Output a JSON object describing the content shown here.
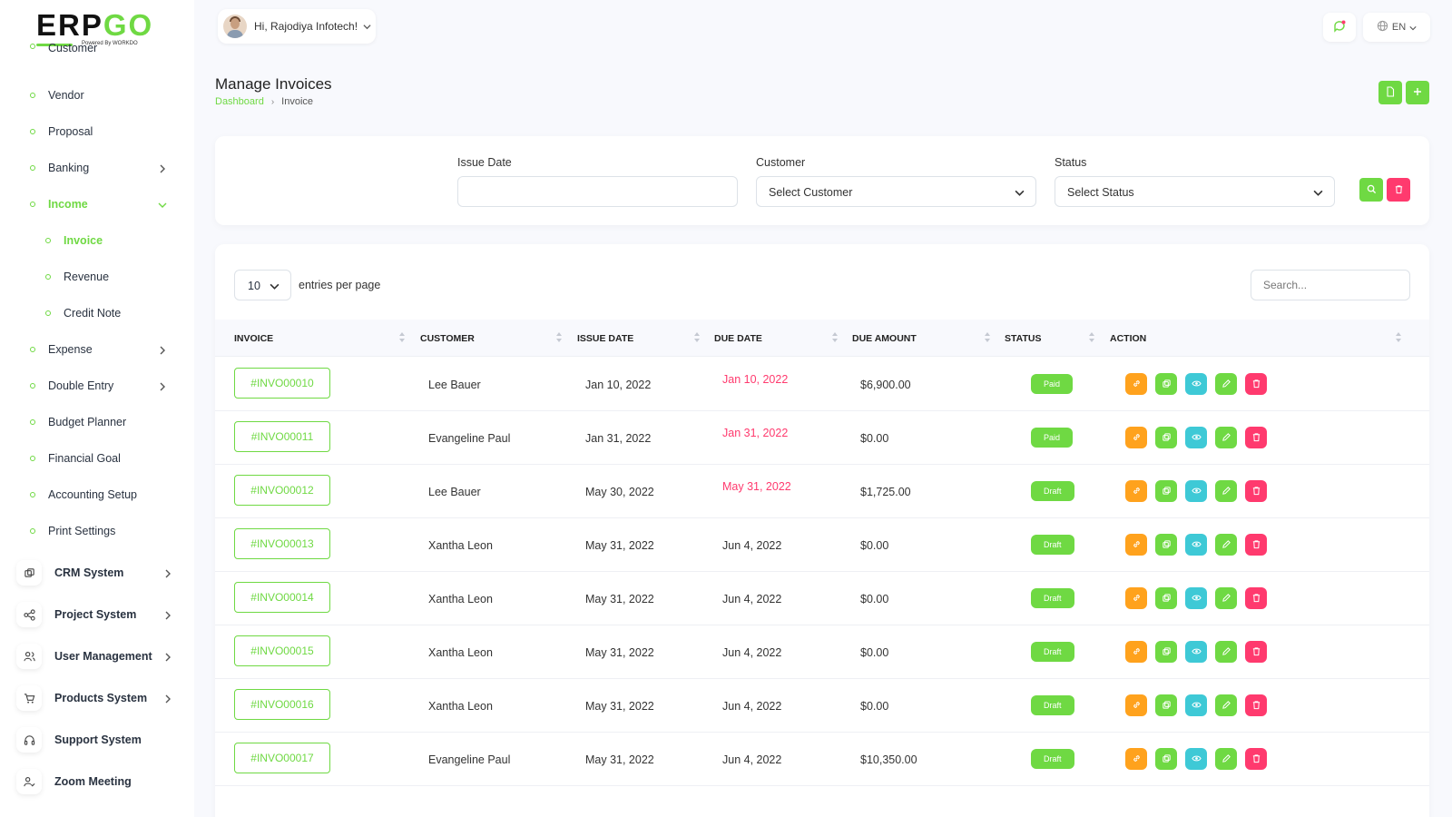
{
  "brand": {
    "logo_main": "ERP",
    "logo_accent": "GO",
    "logo_sub": "Powered By WORKDO"
  },
  "sidebar": {
    "items": [
      {
        "label": "Customer"
      },
      {
        "label": "Vendor"
      },
      {
        "label": "Proposal"
      },
      {
        "label": "Banking"
      },
      {
        "label": "Income"
      },
      {
        "label": "Invoice"
      },
      {
        "label": "Revenue"
      },
      {
        "label": "Credit Note"
      },
      {
        "label": "Expense"
      },
      {
        "label": "Double Entry"
      },
      {
        "label": "Budget Planner"
      },
      {
        "label": "Financial Goal"
      },
      {
        "label": "Accounting Setup"
      },
      {
        "label": "Print Settings"
      }
    ],
    "modules": [
      {
        "label": "CRM System",
        "icon": "layers-icon"
      },
      {
        "label": "Project System",
        "icon": "share-icon"
      },
      {
        "label": "User Management",
        "icon": "users-icon"
      },
      {
        "label": "Products System",
        "icon": "cart-icon"
      },
      {
        "label": "Support System",
        "icon": "headset-icon"
      },
      {
        "label": "Zoom Meeting",
        "icon": "user-check-icon"
      }
    ]
  },
  "header": {
    "greeting": "Hi, Rajodiya Infotech!",
    "language": "EN"
  },
  "page": {
    "title": "Manage Invoices",
    "breadcrumb_home": "Dashboard",
    "breadcrumb_current": "Invoice"
  },
  "filters": {
    "issue_date_label": "Issue Date",
    "issue_date_value": "",
    "customer_label": "Customer",
    "customer_value": "Select Customer",
    "status_label": "Status",
    "status_value": "Select Status"
  },
  "table": {
    "per_page": "10",
    "per_page_label": "entries per page",
    "search_placeholder": "Search...",
    "columns": [
      "INVOICE",
      "CUSTOMER",
      "ISSUE DATE",
      "DUE DATE",
      "DUE AMOUNT",
      "STATUS",
      "ACTION"
    ],
    "rows": [
      {
        "invoice": "#INVO00010",
        "customer": "Lee Bauer",
        "issue_date": "Jan 10, 2022",
        "due_date": "Jan 10, 2022",
        "due_amount": "$6,900.00",
        "status": "Paid",
        "overdue": true
      },
      {
        "invoice": "#INVO00011",
        "customer": "Evangeline Paul",
        "issue_date": "Jan 31, 2022",
        "due_date": "Jan 31, 2022",
        "due_amount": "$0.00",
        "status": "Paid",
        "overdue": true
      },
      {
        "invoice": "#INVO00012",
        "customer": "Lee Bauer",
        "issue_date": "May 30, 2022",
        "due_date": "May 31, 2022",
        "due_amount": "$1,725.00",
        "status": "Draft",
        "overdue": true
      },
      {
        "invoice": "#INVO00013",
        "customer": "Xantha Leon",
        "issue_date": "May 31, 2022",
        "due_date": "Jun 4, 2022",
        "due_amount": "$0.00",
        "status": "Draft",
        "overdue": false
      },
      {
        "invoice": "#INVO00014",
        "customer": "Xantha Leon",
        "issue_date": "May 31, 2022",
        "due_date": "Jun 4, 2022",
        "due_amount": "$0.00",
        "status": "Draft",
        "overdue": false
      },
      {
        "invoice": "#INVO00015",
        "customer": "Xantha Leon",
        "issue_date": "May 31, 2022",
        "due_date": "Jun 4, 2022",
        "due_amount": "$0.00",
        "status": "Draft",
        "overdue": false
      },
      {
        "invoice": "#INVO00016",
        "customer": "Xantha Leon",
        "issue_date": "May 31, 2022",
        "due_date": "Jun 4, 2022",
        "due_amount": "$0.00",
        "status": "Draft",
        "overdue": false
      },
      {
        "invoice": "#INVO00017",
        "customer": "Evangeline Paul",
        "issue_date": "May 31, 2022",
        "due_date": "Jun 4, 2022",
        "due_amount": "$10,350.00",
        "status": "Draft",
        "overdue": false
      }
    ]
  },
  "colors": {
    "primary": "#6fd943",
    "danger": "#ff3a6e",
    "warning": "#ffa21d",
    "info": "#3ec9d6"
  }
}
